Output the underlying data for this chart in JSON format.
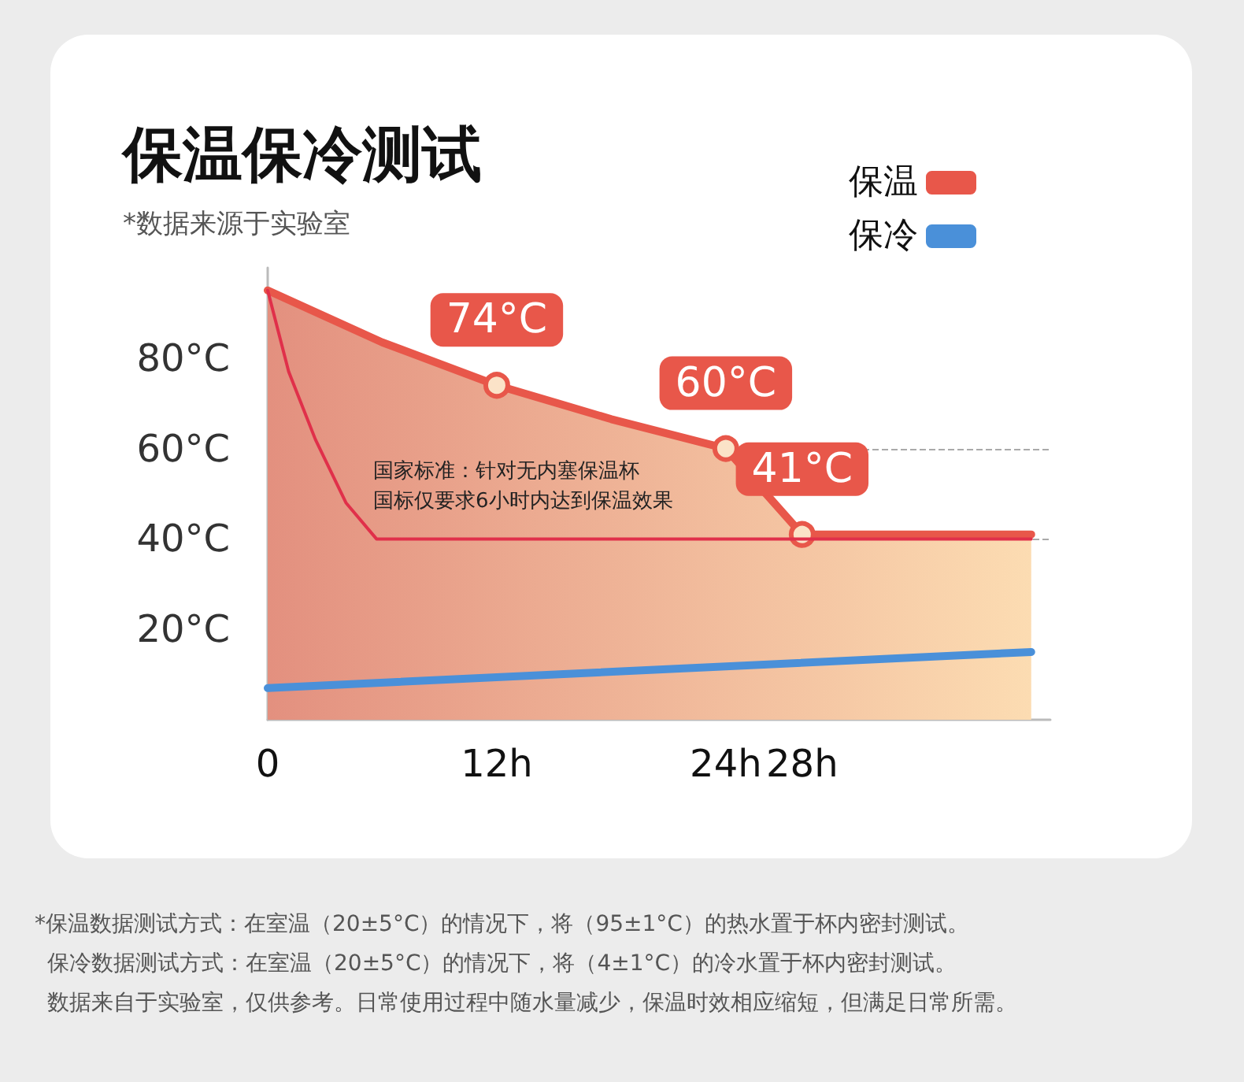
{
  "chart_data": {
    "type": "line",
    "title": "保温保冷测试",
    "subtitle": "*数据来源于实验室",
    "xlim": [
      0,
      41
    ],
    "xticks": [
      0,
      {
        "value": 12,
        "label": "12h"
      },
      {
        "value": 24,
        "label": "24h"
      },
      {
        "value": 28,
        "label": "28h"
      }
    ],
    "ylim": [
      0,
      100
    ],
    "yticks": [
      {
        "value": 20,
        "label": "20°C"
      },
      {
        "value": 40,
        "label": "40°C"
      },
      {
        "value": 60,
        "label": "60°C"
      },
      {
        "value": 80,
        "label": "80°C"
      }
    ],
    "grid": "y",
    "legend": "top right",
    "series": [
      {
        "name": "保温",
        "type": "area",
        "color": "#e8574a",
        "x": [
          0,
          6,
          12,
          18,
          24,
          28,
          40
        ],
        "values": [
          95,
          83.5,
          74,
          66.5,
          60,
          41,
          41
        ],
        "value_labels": [
          null,
          null,
          "74°C",
          null,
          "60°C",
          "41°C",
          null
        ]
      },
      {
        "name": "保冷",
        "color": "#4a90d9",
        "x": [
          0,
          40
        ],
        "values": [
          7,
          15
        ]
      },
      {
        "color": "#e0304a",
        "x": [
          0,
          1.1,
          2.5,
          4.1,
          5.7,
          40
        ],
        "values": [
          95,
          77,
          62,
          48,
          40,
          40
        ]
      }
    ],
    "annotations": [
      "国家标准：针对无内塞保温杯",
      "国标仅要求6小时内达到保温效果",
      "*保温数据测试方式：在室温（20±5°C）的情况下，将（95±1°C）的热水置于杯内密封测试。",
      "保冷数据测试方式：在室温（20±5°C）的情况下，将（4±1°C）的冷水置于杯内密封测试。",
      "数据来自于实验室，仅供参考。日常使用过程中随水量减少，保温时效相应缩短，但满足日常所需。"
    ]
  }
}
